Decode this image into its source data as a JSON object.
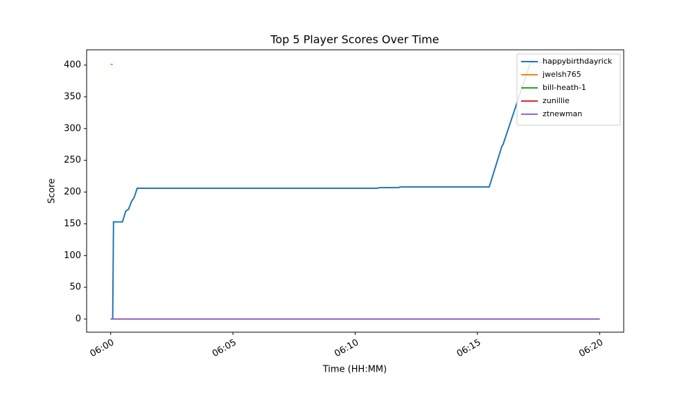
{
  "chart_data": {
    "type": "line",
    "title": "Top 5 Player Scores Over Time",
    "xlabel": "Time (HH:MM)",
    "ylabel": "Score",
    "series": [
      {
        "name": "happybirthdayrick",
        "color": "#1f77b4",
        "x": [
          "06:00:00",
          "06:00:05",
          "06:00:07",
          "06:00:29",
          "06:00:37",
          "06:00:44",
          "06:00:51",
          "06:00:58",
          "06:01:05",
          "06:10:55",
          "06:10:59",
          "06:11:46",
          "06:11:51",
          "06:15:29",
          "06:16:00",
          "06:16:03",
          "06:16:42",
          "06:17:10",
          "06:20:00"
        ],
        "values": [
          0,
          0,
          153,
          153,
          170,
          173,
          185,
          192,
          206,
          206,
          207,
          207,
          208,
          208,
          272,
          275,
          350,
          404,
          404
        ]
      },
      {
        "name": "jwelsh765",
        "color": "#ff7f0e",
        "x": [
          "06:00:00",
          "06:00:05"
        ],
        "values": [
          401,
          401
        ]
      },
      {
        "name": "bill-heath-1",
        "color": "#2ca02c",
        "x": [
          "06:00:00",
          "06:20:00"
        ],
        "values": [
          0,
          0
        ]
      },
      {
        "name": "zunillie",
        "color": "#d62728",
        "x": [
          "06:00:00",
          "06:20:00"
        ],
        "values": [
          0,
          0
        ]
      },
      {
        "name": "ztnewman",
        "color": "#9467bd",
        "x": [
          "06:00:00",
          "06:20:00"
        ],
        "values": [
          0,
          0
        ]
      }
    ],
    "xlim": [
      "05:59:01",
      "06:20:59"
    ],
    "xticks": [
      "06:00",
      "06:05",
      "06:10",
      "06:15",
      "06:20"
    ],
    "ylim": [
      -20.7,
      424
    ],
    "yticks": [
      0,
      50,
      100,
      150,
      200,
      250,
      300,
      350,
      400
    ],
    "grid": false,
    "legend": "upper right"
  }
}
